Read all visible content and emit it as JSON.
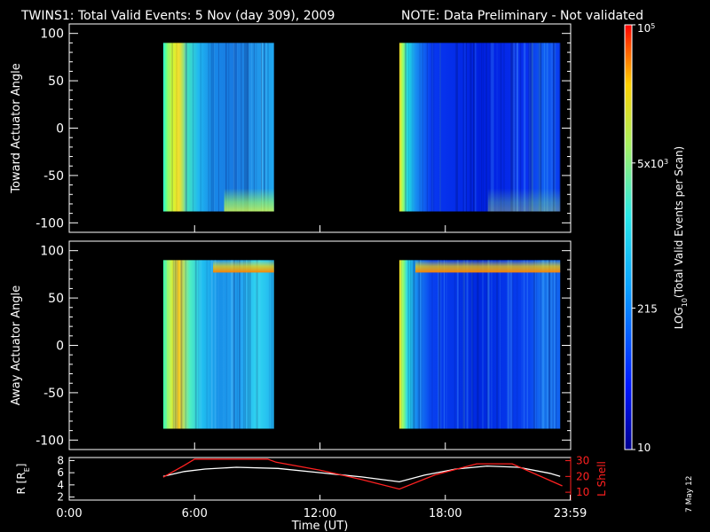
{
  "header": {
    "title": "TWINS1: Total Valid Events:  5 Nov (day 309), 2009",
    "note": "NOTE: Data Preliminary - Not validated",
    "note_color": "#ff2020"
  },
  "footer": {
    "date_stamp": "7 May 12"
  },
  "chart_data": [
    {
      "type": "heatmap",
      "panel": "toward",
      "ylabel": "Toward Actuator Angle",
      "ylim": [
        -110,
        110
      ],
      "yticks": [
        100,
        50,
        0,
        -50,
        -100
      ],
      "xlim": [
        0,
        24
      ],
      "coverage_hours": [
        [
          4.5,
          9.8
        ],
        [
          15.8,
          23.5
        ]
      ],
      "angle_range": [
        -88,
        90
      ],
      "color_scale": "log"
    },
    {
      "type": "heatmap",
      "panel": "away",
      "ylabel": "Away Actuator Angle",
      "ylim": [
        -110,
        110
      ],
      "yticks": [
        100,
        50,
        0,
        -50,
        -100
      ],
      "xlim": [
        0,
        24
      ],
      "coverage_hours": [
        [
          4.5,
          9.8
        ],
        [
          15.8,
          23.5
        ]
      ],
      "angle_range": [
        -88,
        90
      ],
      "color_scale": "log"
    },
    {
      "type": "line",
      "panel": "orbit",
      "xlabel": "Time (UT)",
      "xlim": [
        0,
        24
      ],
      "xticks": [
        "0:00",
        "6:00",
        "12:00",
        "18:00",
        "23:59"
      ],
      "xtick_values": [
        0,
        6,
        12,
        18,
        23.98
      ],
      "ylabel_left": "R [R",
      "ylabel_left_sub": "E",
      "ylabel_left_end": "]",
      "ylim_left": [
        1.5,
        8.5
      ],
      "yticks_left": [
        8,
        6,
        4,
        2
      ],
      "ylabel_right": "L Shell",
      "ylim_right": [
        5,
        32
      ],
      "yticks_right": [
        30,
        20,
        10
      ],
      "right_axis_color": "#ff2020",
      "series": [
        {
          "axis": "left",
          "color": "#ffffff",
          "x": [
            4.5,
            5.5,
            6.5,
            8,
            10,
            12,
            14,
            15.8,
            17,
            18.5,
            20,
            21.5,
            23,
            23.5
          ],
          "values": [
            5.4,
            6.2,
            6.6,
            6.9,
            6.7,
            6.0,
            5.3,
            4.5,
            5.6,
            6.6,
            7.1,
            6.9,
            5.9,
            5.4
          ]
        },
        {
          "axis": "right",
          "color": "#ff2020",
          "x": [
            4.5,
            5.5,
            6.0,
            9.5,
            9.9,
            12,
            14,
            15.8,
            17.5,
            19.5,
            21.2,
            23.6
          ],
          "values": [
            19.5,
            27,
            31,
            31,
            29,
            24,
            18,
            12,
            21,
            28,
            28,
            14
          ]
        }
      ]
    },
    {
      "type": "heatmap",
      "panel": "colorbar",
      "title": "LOG",
      "title_sub": "10",
      "title_end": "(Total Valid  Events per Scan)",
      "scale": "log",
      "range": [
        10,
        100000
      ],
      "tick_labels": [
        {
          "base": "10",
          "exp": "5",
          "value": 100000
        },
        {
          "base": "5x10",
          "exp": "3",
          "value": 5000
        },
        {
          "base": "215",
          "exp": "",
          "value": 215
        },
        {
          "base": "10",
          "exp": "",
          "value": 10
        }
      ]
    }
  ]
}
